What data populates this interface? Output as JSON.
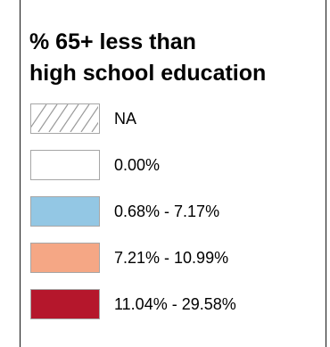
{
  "legend": {
    "title_line1": "% 65+ less than",
    "title_line2": "high school education",
    "items": [
      {
        "label": "NA",
        "pattern": "hatched",
        "fill": "#ffffff",
        "stroke": "#a6a6a6"
      },
      {
        "label": "0.00%",
        "pattern": "solid",
        "fill": "#ffffff",
        "stroke": "#a6a6a6"
      },
      {
        "label": "0.68% - 7.17%",
        "pattern": "solid",
        "fill": "#93c7e4",
        "stroke": "#a6a6a6"
      },
      {
        "label": "7.21% - 10.99%",
        "pattern": "solid",
        "fill": "#f5a785",
        "stroke": "#a6a6a6"
      },
      {
        "label": "11.04% - 29.58%",
        "pattern": "solid",
        "fill": "#b5172c",
        "stroke": "#a6a6a6"
      }
    ]
  }
}
